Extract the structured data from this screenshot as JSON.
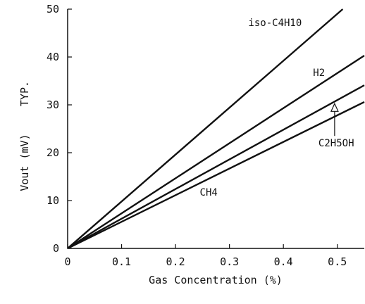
{
  "chart_data": {
    "type": "line",
    "xlabel": "Gas Concentration (%)",
    "ylabel": "Vout (mV)",
    "ylabel_suffix": "TYP.",
    "xlim": [
      0,
      0.55
    ],
    "ylim": [
      0,
      50
    ],
    "xticks": [
      0,
      0.1,
      0.2,
      0.3,
      0.4,
      0.5
    ],
    "xtick_labels": [
      "0",
      "0.1",
      "0.2",
      "0.3",
      "0.4",
      "0.5"
    ],
    "yticks": [
      0,
      10,
      20,
      30,
      40,
      50
    ],
    "ytick_labels": [
      "0",
      "10",
      "20",
      "30",
      "40",
      "50"
    ],
    "grid": false,
    "series": [
      {
        "name": "iso-C4H10",
        "x": [
          0,
          0.51
        ],
        "y": [
          0,
          50
        ]
      },
      {
        "name": "H2",
        "x": [
          0,
          0.55
        ],
        "y": [
          0,
          40.3
        ]
      },
      {
        "name": "C2H5OH",
        "x": [
          0,
          0.55
        ],
        "y": [
          0,
          34.1
        ]
      },
      {
        "name": "CH4",
        "x": [
          0,
          0.55
        ],
        "y": [
          0,
          30.6
        ]
      }
    ],
    "annotations": [
      {
        "text": "iso-C4H10",
        "x": 0.335,
        "y": 46.5
      },
      {
        "text": "H2",
        "x": 0.455,
        "y": 36.0
      },
      {
        "text": "C2H5OH",
        "x": 0.465,
        "y": 21.3
      },
      {
        "text": "CH4",
        "x": 0.245,
        "y": 11.0
      }
    ]
  }
}
